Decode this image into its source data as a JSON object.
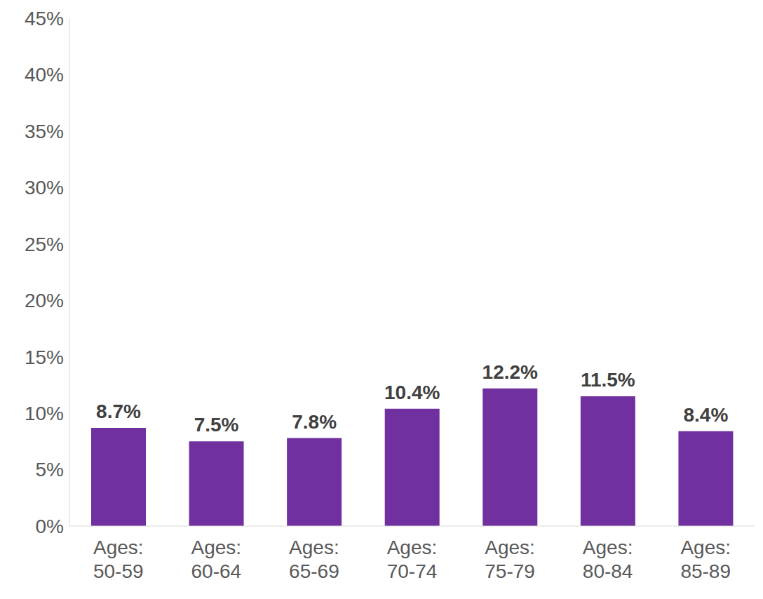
{
  "chart_data": {
    "type": "bar",
    "categories": [
      "Ages: 50-59",
      "Ages: 60-64",
      "Ages: 65-69",
      "Ages: 70-74",
      "Ages: 75-79",
      "Ages: 80-84",
      "Ages: 85-89"
    ],
    "values": [
      8.7,
      7.5,
      7.8,
      10.4,
      12.2,
      11.5,
      8.4
    ],
    "value_labels": [
      "8.7%",
      "7.5%",
      "7.8%",
      "10.4%",
      "12.2%",
      "11.5%",
      "8.4%"
    ],
    "color": "#7030a0",
    "ylim": [
      0,
      45
    ],
    "yticks": [
      {
        "value": 0,
        "label": "0%"
      },
      {
        "value": 5,
        "label": "5%"
      },
      {
        "value": 10,
        "label": "10%"
      },
      {
        "value": 15,
        "label": "15%"
      },
      {
        "value": 20,
        "label": "20%"
      },
      {
        "value": 25,
        "label": "25%"
      },
      {
        "value": 30,
        "label": "30%"
      },
      {
        "value": 35,
        "label": "35%"
      },
      {
        "value": 40,
        "label": "40%"
      },
      {
        "value": 45,
        "label": "45%"
      }
    ],
    "grid": false,
    "data_labels": true
  }
}
